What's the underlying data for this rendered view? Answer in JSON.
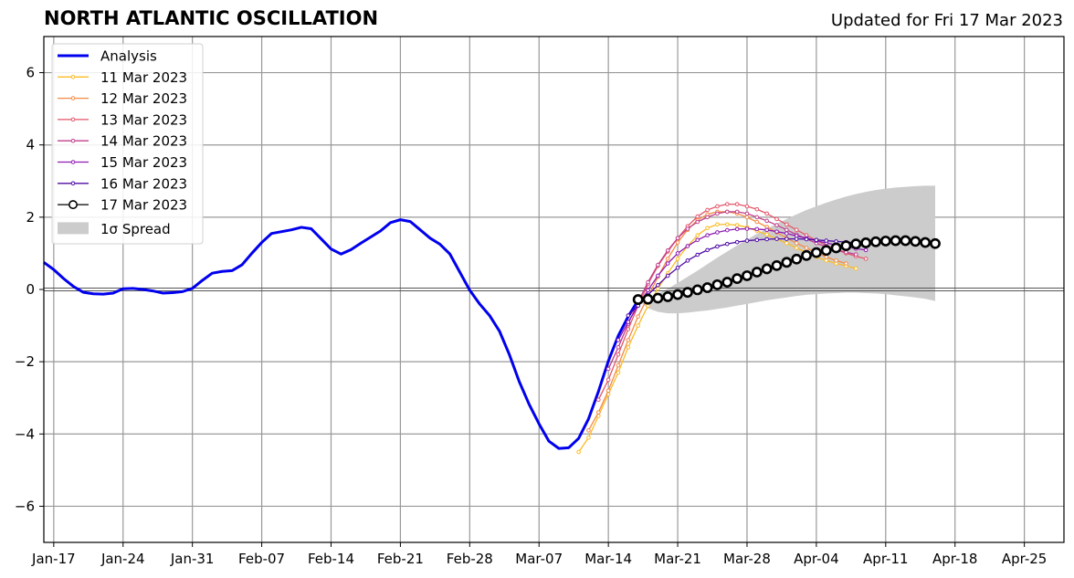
{
  "chart_data": {
    "type": "line",
    "title": "NORTH ATLANTIC OSCILLATION",
    "subtitle": "Updated for Fri 17 Mar 2023",
    "xlabel": "",
    "ylabel": "",
    "x_ticks": [
      "Jan-17",
      "Jan-24",
      "Jan-31",
      "Feb-07",
      "Feb-14",
      "Feb-21",
      "Feb-28",
      "Mar-07",
      "Mar-14",
      "Mar-21",
      "Mar-28",
      "Apr-04",
      "Apr-11",
      "Apr-18",
      "Apr-25"
    ],
    "x_tick_days": [
      16,
      23,
      30,
      37,
      44,
      51,
      58,
      65,
      72,
      79,
      86,
      93,
      100,
      107,
      114
    ],
    "y_ticks": [
      -6,
      -4,
      -2,
      0,
      2,
      4,
      6
    ],
    "y_tick_labels": [
      "−6",
      "−4",
      "−2",
      "0",
      "2",
      "4",
      "6"
    ],
    "xlim": [
      "Jan-16",
      "Apr-29"
    ],
    "ylim": [
      -7,
      7
    ],
    "grid": true,
    "legend_position": "top-left",
    "series": [
      {
        "name": "Analysis",
        "color": "#0000ee",
        "start_day": 15,
        "values": [
          0.75,
          0.55,
          0.3,
          0.08,
          -0.08,
          -0.12,
          -0.13,
          -0.1,
          0.02,
          0.03,
          0.0,
          -0.04,
          -0.1,
          -0.09,
          -0.06,
          0.03,
          0.25,
          0.45,
          0.5,
          0.52,
          0.68,
          1.0,
          1.3,
          1.55,
          1.6,
          1.65,
          1.72,
          1.68,
          1.4,
          1.12,
          0.98,
          1.1,
          1.28,
          1.45,
          1.62,
          1.85,
          1.93,
          1.88,
          1.65,
          1.42,
          1.25,
          0.98,
          0.48,
          -0.02,
          -0.4,
          -0.72,
          -1.15,
          -1.8,
          -2.55,
          -3.18,
          -3.72,
          -4.2,
          -4.4,
          -4.38,
          -4.12,
          -3.58,
          -2.82,
          -1.98,
          -1.28,
          -0.75,
          -0.3
        ]
      },
      {
        "name": "11 Mar 2023",
        "color": "#fcbc25",
        "start_day": 69,
        "values": [
          -4.5,
          -4.1,
          -3.5,
          -2.9,
          -2.3,
          -1.6,
          -1.0,
          -0.45,
          0.02,
          0.45,
          0.85,
          1.2,
          1.5,
          1.7,
          1.8,
          1.8,
          1.78,
          1.72,
          1.62,
          1.52,
          1.4,
          1.28,
          1.15,
          1.02,
          0.9,
          0.8,
          0.72,
          0.65,
          0.58
        ]
      },
      {
        "name": "12 Mar 2023",
        "color": "#f48b44",
        "start_day": 70,
        "values": [
          -3.9,
          -3.4,
          -2.8,
          -2.1,
          -1.4,
          -0.75,
          -0.2,
          0.35,
          0.85,
          1.3,
          1.65,
          1.92,
          2.08,
          2.15,
          2.15,
          2.1,
          2.0,
          1.87,
          1.73,
          1.58,
          1.42,
          1.28,
          1.15,
          1.02,
          0.9,
          0.8,
          0.72
        ]
      },
      {
        "name": "13 Mar 2023",
        "color": "#e4566a",
        "start_day": 71,
        "values": [
          -3.05,
          -2.5,
          -1.8,
          -1.1,
          -0.45,
          0.15,
          0.65,
          1.05,
          1.42,
          1.75,
          2.02,
          2.2,
          2.3,
          2.36,
          2.36,
          2.3,
          2.22,
          2.1,
          1.95,
          1.8,
          1.65,
          1.5,
          1.36,
          1.22,
          1.1,
          1.0,
          0.92,
          0.85
        ]
      },
      {
        "name": "14 Mar 2023",
        "color": "#c03f8c",
        "start_day": 72,
        "values": [
          -2.2,
          -1.6,
          -0.95,
          -0.35,
          0.2,
          0.68,
          1.08,
          1.42,
          1.68,
          1.87,
          2.0,
          2.1,
          2.15,
          2.15,
          2.1,
          2.0,
          1.9,
          1.78,
          1.65,
          1.52,
          1.4,
          1.28,
          1.18,
          1.1,
          1.03,
          0.97
        ]
      },
      {
        "name": "15 Mar 2023",
        "color": "#8e1ab2",
        "start_day": 73,
        "values": [
          -1.4,
          -0.9,
          -0.45,
          -0.02,
          0.38,
          0.72,
          1.0,
          1.2,
          1.37,
          1.5,
          1.58,
          1.64,
          1.67,
          1.68,
          1.67,
          1.65,
          1.6,
          1.55,
          1.48,
          1.42,
          1.35,
          1.29,
          1.23,
          1.18,
          1.13,
          1.09
        ]
      },
      {
        "name": "16 Mar 2023",
        "color": "#4e0aa5",
        "start_day": 74,
        "values": [
          -0.72,
          -0.45,
          -0.15,
          0.12,
          0.38,
          0.6,
          0.8,
          0.96,
          1.09,
          1.19,
          1.26,
          1.31,
          1.35,
          1.37,
          1.39,
          1.4,
          1.4,
          1.4,
          1.39,
          1.37,
          1.35,
          1.33,
          1.31,
          1.29,
          1.27,
          1.25
        ]
      },
      {
        "name": "17 Mar 2023",
        "color": "#000000",
        "start_day": 75,
        "values": [
          -0.28,
          -0.27,
          -0.24,
          -0.2,
          -0.14,
          -0.08,
          -0.01,
          0.05,
          0.13,
          0.2,
          0.3,
          0.38,
          0.48,
          0.57,
          0.66,
          0.75,
          0.84,
          0.94,
          1.02,
          1.08,
          1.15,
          1.21,
          1.26,
          1.29,
          1.32,
          1.34,
          1.35,
          1.35,
          1.33,
          1.3,
          1.27
        ]
      }
    ],
    "spread": {
      "name": "1σ Spread",
      "color": "#cccccc",
      "start_day": 75,
      "upper": [
        -0.28,
        -0.22,
        -0.12,
        0.02,
        0.18,
        0.35,
        0.52,
        0.7,
        0.88,
        1.05,
        1.22,
        1.38,
        1.54,
        1.68,
        1.82,
        1.95,
        2.08,
        2.2,
        2.3,
        2.4,
        2.49,
        2.57,
        2.64,
        2.7,
        2.75,
        2.79,
        2.82,
        2.84,
        2.86,
        2.87,
        2.87
      ],
      "lower": [
        -0.28,
        -0.52,
        -0.62,
        -0.66,
        -0.66,
        -0.64,
        -0.61,
        -0.58,
        -0.54,
        -0.5,
        -0.45,
        -0.4,
        -0.35,
        -0.3,
        -0.26,
        -0.22,
        -0.18,
        -0.15,
        -0.13,
        -0.11,
        -0.1,
        -0.09,
        -0.09,
        -0.1,
        -0.11,
        -0.13,
        -0.16,
        -0.19,
        -0.22,
        -0.26,
        -0.32
      ]
    }
  }
}
